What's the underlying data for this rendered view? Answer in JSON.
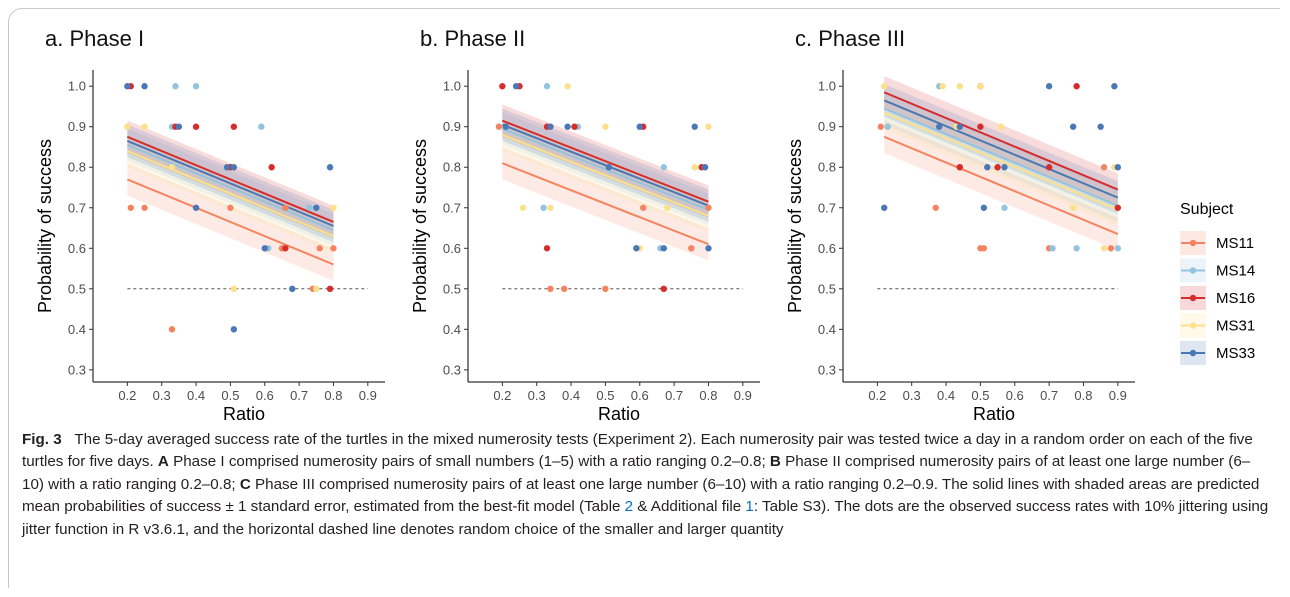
{
  "chart_data": [
    {
      "type": "scatter",
      "title": "a. Phase I",
      "xlabel": "Ratio",
      "ylabel": "Probability of success",
      "xticks": [
        0.2,
        0.3,
        0.4,
        0.5,
        0.6,
        0.7,
        0.8,
        0.9
      ],
      "yticks": [
        0.3,
        0.4,
        0.5,
        0.6,
        0.7,
        0.8,
        0.9,
        1.0
      ],
      "xlim": [
        0.1,
        0.95
      ],
      "ylim": [
        0.27,
        1.04
      ],
      "reference_line": 0.5,
      "series": [
        {
          "name": "MS11",
          "color": "#f4845f",
          "fit": {
            "x": [
              0.2,
              0.8
            ],
            "y": [
              0.77,
              0.56
            ],
            "se": 0.04
          },
          "points": [
            [
              0.21,
              0.7
            ],
            [
              0.25,
              0.7
            ],
            [
              0.33,
              0.4
            ],
            [
              0.5,
              0.7
            ],
            [
              0.65,
              0.6
            ],
            [
              0.66,
              0.7
            ],
            [
              0.76,
              0.6
            ],
            [
              0.8,
              0.6
            ],
            [
              0.74,
              0.5
            ]
          ]
        },
        {
          "name": "MS14",
          "color": "#93c4df",
          "fit": {
            "x": [
              0.2,
              0.8
            ],
            "y": [
              0.855,
              0.645
            ],
            "se": 0.04
          },
          "points": [
            [
              0.34,
              1.0
            ],
            [
              0.4,
              1.0
            ],
            [
              0.33,
              0.9
            ],
            [
              0.59,
              0.9
            ],
            [
              0.5,
              0.8
            ],
            [
              0.61,
              0.6
            ],
            [
              0.73,
              0.7
            ],
            [
              0.75,
              0.5
            ]
          ]
        },
        {
          "name": "MS16",
          "color": "#d62c2c",
          "fit": {
            "x": [
              0.2,
              0.8
            ],
            "y": [
              0.875,
              0.665
            ],
            "se": 0.04
          },
          "points": [
            [
              0.21,
              1.0
            ],
            [
              0.34,
              0.9
            ],
            [
              0.4,
              0.9
            ],
            [
              0.51,
              0.9
            ],
            [
              0.5,
              0.8
            ],
            [
              0.62,
              0.8
            ],
            [
              0.66,
              0.6
            ],
            [
              0.79,
              0.5
            ]
          ]
        },
        {
          "name": "MS31",
          "color": "#fde08a",
          "fit": {
            "x": [
              0.2,
              0.8
            ],
            "y": [
              0.84,
              0.63
            ],
            "se": 0.04
          },
          "points": [
            [
              0.2,
              0.9
            ],
            [
              0.25,
              0.9
            ],
            [
              0.33,
              0.8
            ],
            [
              0.8,
              0.7
            ],
            [
              0.51,
              0.5
            ],
            [
              0.75,
              0.5
            ]
          ]
        },
        {
          "name": "MS33",
          "color": "#4a77b5",
          "fit": {
            "x": [
              0.2,
              0.8
            ],
            "y": [
              0.865,
              0.655
            ],
            "se": 0.04
          },
          "points": [
            [
              0.2,
              1.0
            ],
            [
              0.25,
              1.0
            ],
            [
              0.35,
              0.9
            ],
            [
              0.49,
              0.8
            ],
            [
              0.51,
              0.8
            ],
            [
              0.79,
              0.8
            ],
            [
              0.4,
              0.7
            ],
            [
              0.75,
              0.7
            ],
            [
              0.6,
              0.6
            ],
            [
              0.68,
              0.5
            ],
            [
              0.51,
              0.4
            ]
          ]
        }
      ]
    },
    {
      "type": "scatter",
      "title": "b. Phase II",
      "xlabel": "Ratio",
      "ylabel": "Probability of success",
      "xticks": [
        0.2,
        0.3,
        0.4,
        0.5,
        0.6,
        0.7,
        0.8,
        0.9
      ],
      "yticks": [
        0.3,
        0.4,
        0.5,
        0.6,
        0.7,
        0.8,
        0.9,
        1.0
      ],
      "xlim": [
        0.1,
        0.95
      ],
      "ylim": [
        0.27,
        1.04
      ],
      "reference_line": 0.5,
      "series": [
        {
          "name": "MS11",
          "color": "#f4845f",
          "fit": {
            "x": [
              0.2,
              0.8
            ],
            "y": [
              0.81,
              0.61
            ],
            "se": 0.04
          },
          "points": [
            [
              0.19,
              0.9
            ],
            [
              0.34,
              0.5
            ],
            [
              0.38,
              0.5
            ],
            [
              0.5,
              0.5
            ],
            [
              0.61,
              0.7
            ],
            [
              0.75,
              0.6
            ],
            [
              0.8,
              0.7
            ],
            [
              0.79,
              0.8
            ]
          ]
        },
        {
          "name": "MS14",
          "color": "#93c4df",
          "fit": {
            "x": [
              0.2,
              0.8
            ],
            "y": [
              0.895,
              0.695
            ],
            "se": 0.04
          },
          "points": [
            [
              0.33,
              1.0
            ],
            [
              0.42,
              0.9
            ],
            [
              0.6,
              0.9
            ],
            [
              0.67,
              0.8
            ],
            [
              0.32,
              0.7
            ],
            [
              0.66,
              0.6
            ]
          ]
        },
        {
          "name": "MS16",
          "color": "#d62c2c",
          "fit": {
            "x": [
              0.2,
              0.8
            ],
            "y": [
              0.915,
              0.715
            ],
            "se": 0.04
          },
          "points": [
            [
              0.2,
              1.0
            ],
            [
              0.25,
              1.0
            ],
            [
              0.33,
              0.9
            ],
            [
              0.41,
              0.9
            ],
            [
              0.61,
              0.9
            ],
            [
              0.78,
              0.8
            ],
            [
              0.33,
              0.6
            ],
            [
              0.67,
              0.5
            ]
          ]
        },
        {
          "name": "MS31",
          "color": "#fde08a",
          "fit": {
            "x": [
              0.2,
              0.8
            ],
            "y": [
              0.88,
              0.68
            ],
            "se": 0.04
          },
          "points": [
            [
              0.39,
              1.0
            ],
            [
              0.5,
              0.9
            ],
            [
              0.8,
              0.9
            ],
            [
              0.76,
              0.8
            ],
            [
              0.26,
              0.7
            ],
            [
              0.34,
              0.7
            ],
            [
              0.68,
              0.7
            ],
            [
              0.6,
              0.6
            ]
          ]
        },
        {
          "name": "MS33",
          "color": "#4a77b5",
          "fit": {
            "x": [
              0.2,
              0.8
            ],
            "y": [
              0.905,
              0.705
            ],
            "se": 0.04
          },
          "points": [
            [
              0.24,
              1.0
            ],
            [
              0.21,
              0.9
            ],
            [
              0.34,
              0.9
            ],
            [
              0.39,
              0.9
            ],
            [
              0.6,
              0.9
            ],
            [
              0.76,
              0.9
            ],
            [
              0.51,
              0.8
            ],
            [
              0.79,
              0.8
            ],
            [
              0.59,
              0.6
            ],
            [
              0.67,
              0.6
            ],
            [
              0.8,
              0.6
            ]
          ]
        }
      ]
    },
    {
      "type": "scatter",
      "title": "c. Phase III",
      "xlabel": "Ratio",
      "ylabel": "Probability of success",
      "xticks": [
        0.2,
        0.3,
        0.4,
        0.5,
        0.6,
        0.7,
        0.8,
        0.9
      ],
      "yticks": [
        0.3,
        0.4,
        0.5,
        0.6,
        0.7,
        0.8,
        0.9,
        1.0
      ],
      "xlim": [
        0.1,
        0.95
      ],
      "ylim": [
        0.27,
        1.04
      ],
      "reference_line": 0.5,
      "series": [
        {
          "name": "MS11",
          "color": "#f4845f",
          "fit": {
            "x": [
              0.22,
              0.9
            ],
            "y": [
              0.875,
              0.635
            ],
            "se": 0.04
          },
          "points": [
            [
              0.21,
              0.9
            ],
            [
              0.37,
              0.7
            ],
            [
              0.44,
              0.8
            ],
            [
              0.5,
              0.6
            ],
            [
              0.51,
              0.6
            ],
            [
              0.7,
              0.6
            ],
            [
              0.86,
              0.8
            ],
            [
              0.88,
              0.6
            ]
          ]
        },
        {
          "name": "MS14",
          "color": "#93c4df",
          "fit": {
            "x": [
              0.22,
              0.9
            ],
            "y": [
              0.945,
              0.705
            ],
            "se": 0.04
          },
          "points": [
            [
              0.23,
              0.9
            ],
            [
              0.38,
              1.0
            ],
            [
              0.57,
              0.7
            ],
            [
              0.71,
              0.6
            ],
            [
              0.78,
              0.6
            ],
            [
              0.9,
              0.6
            ]
          ]
        },
        {
          "name": "MS16",
          "color": "#d62c2c",
          "fit": {
            "x": [
              0.22,
              0.9
            ],
            "y": [
              0.985,
              0.745
            ],
            "se": 0.04
          },
          "points": [
            [
              0.5,
              1.0
            ],
            [
              0.78,
              1.0
            ],
            [
              0.5,
              0.9
            ],
            [
              0.44,
              0.8
            ],
            [
              0.55,
              0.8
            ],
            [
              0.7,
              0.8
            ],
            [
              0.9,
              0.7
            ]
          ]
        },
        {
          "name": "MS31",
          "color": "#fde08a",
          "fit": {
            "x": [
              0.22,
              0.9
            ],
            "y": [
              0.935,
              0.695
            ],
            "se": 0.04
          },
          "points": [
            [
              0.22,
              1.0
            ],
            [
              0.39,
              1.0
            ],
            [
              0.44,
              1.0
            ],
            [
              0.5,
              1.0
            ],
            [
              0.43,
              0.9
            ],
            [
              0.56,
              0.9
            ],
            [
              0.77,
              0.7
            ],
            [
              0.89,
              0.8
            ],
            [
              0.86,
              0.6
            ]
          ]
        },
        {
          "name": "MS33",
          "color": "#4a77b5",
          "fit": {
            "x": [
              0.22,
              0.9
            ],
            "y": [
              0.965,
              0.725
            ],
            "se": 0.04
          },
          "points": [
            [
              0.22,
              0.7
            ],
            [
              0.38,
              0.9
            ],
            [
              0.44,
              0.9
            ],
            [
              0.52,
              0.8
            ],
            [
              0.57,
              0.8
            ],
            [
              0.51,
              0.7
            ],
            [
              0.7,
              1.0
            ],
            [
              0.89,
              1.0
            ],
            [
              0.77,
              0.9
            ],
            [
              0.85,
              0.9
            ],
            [
              0.9,
              0.8
            ]
          ]
        }
      ]
    }
  ],
  "legend": {
    "title": "Subject",
    "items": [
      {
        "label": "MS11",
        "color": "#f4845f"
      },
      {
        "label": "MS14",
        "color": "#93c4df"
      },
      {
        "label": "MS16",
        "color": "#d62c2c"
      },
      {
        "label": "MS31",
        "color": "#fde08a"
      },
      {
        "label": "MS33",
        "color": "#4a77b5"
      }
    ]
  },
  "caption": {
    "fig_label": "Fig. 3",
    "s1": "The 5-day averaged success rate of the turtles in the mixed numerosity tests (Experiment 2). Each numerosity pair was tested twice a day in a random order on each of the five turtles for five days. ",
    "label_a": "A",
    "s2": " Phase I comprised numerosity pairs of small numbers (1–5) with a ratio ranging 0.2–0.8; ",
    "label_b": "B",
    "s3": " Phase II comprised numerosity pairs of at least one large number (6–10) with a ratio ranging 0.2–0.8; ",
    "label_c": "C",
    "s4": " Phase III comprised numerosity pairs of at least one large number (6–10) with a ratio ranging 0.2–0.9. The solid lines with shaded areas are predicted mean probabilities of success ± 1 standard error, estimated from the best-fit model (Table ",
    "ref_table": "2",
    "s5": " & Additional file ",
    "ref_file": "1",
    "s6": ": Table S3). The dots are the observed success rates with 10% jittering using jitter function in R v3.6.1, and the horizontal dashed line denotes random choice of the smaller and larger quantity"
  }
}
